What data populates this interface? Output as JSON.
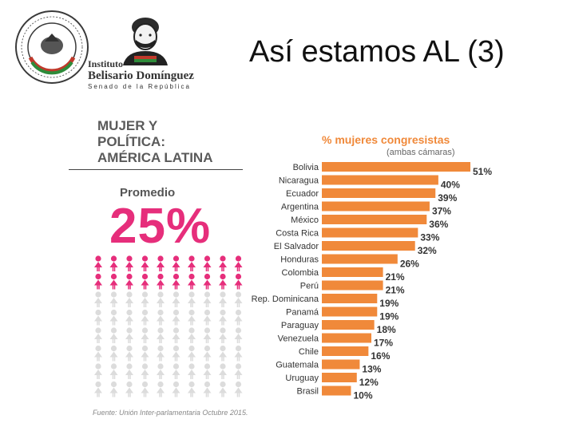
{
  "header": {
    "seal_text": "SENADO DE LA REPÚBLICA · LXIII LEGISLATURA",
    "institute_line1": "Instituto",
    "institute_line2": "Belisario Domínguez",
    "institute_line3": "Senado de la República"
  },
  "slide": {
    "title": "Así estamos AL (3)"
  },
  "infographic": {
    "title_lines": [
      "MUJER Y",
      "POLÍTICA:",
      "AMÉRICA LATINA"
    ],
    "average_label": "Promedio",
    "average_value": "25%",
    "average_fraction": 0.25,
    "source": "Fuente: Unión Inter-parlamentaria Octubre 2015."
  },
  "colors": {
    "bar": "#f0893a",
    "pink": "#e62e7b",
    "grey_figure": "#dcdcdc"
  },
  "chart_data": {
    "type": "bar",
    "orientation": "horizontal",
    "title": "% mujeres congresistas",
    "subtitle": "(ambas cámaras)",
    "categories": [
      "Bolivia",
      "Nicaragua",
      "Ecuador",
      "Argentina",
      "México",
      "Costa Rica",
      "El Salvador",
      "Honduras",
      "Colombia",
      "Perú",
      "Rep. Dominicana",
      "Panamá",
      "Paraguay",
      "Venezuela",
      "Chile",
      "Guatemala",
      "Uruguay",
      "Brasil"
    ],
    "values": [
      51,
      40,
      39,
      37,
      36,
      33,
      32,
      26,
      21,
      21,
      19,
      19,
      18,
      17,
      16,
      13,
      12,
      10
    ],
    "value_labels": [
      "51%",
      "40%",
      "39%",
      "37%",
      "36%",
      "33%",
      "32%",
      "26%",
      "21%",
      "21%",
      "19%",
      "19%",
      "18%",
      "17%",
      "16%",
      "13%",
      "12%",
      "10%"
    ],
    "xlim": [
      0,
      51
    ],
    "unit": "%"
  }
}
